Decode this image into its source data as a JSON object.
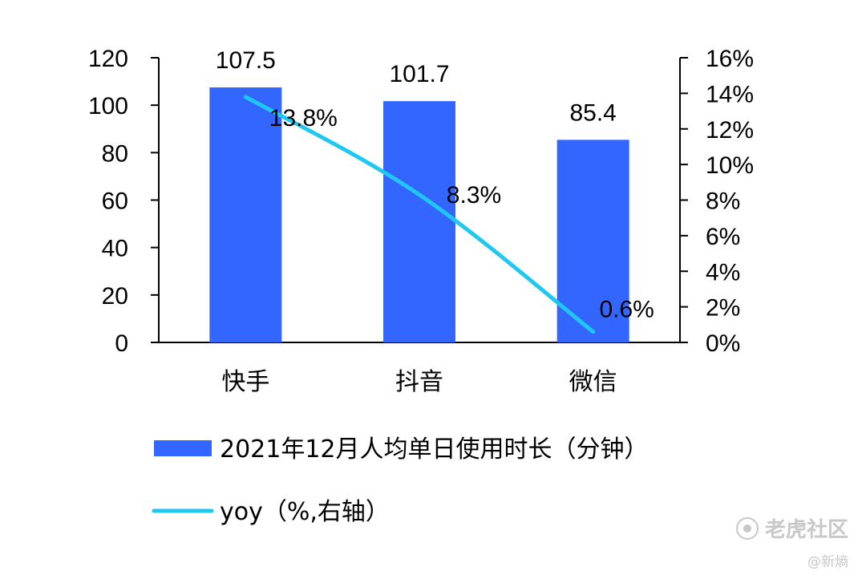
{
  "chart_data": {
    "type": "bar",
    "categories": [
      "快手",
      "抖音",
      "微信"
    ],
    "series": [
      {
        "name": "2021年12月人均单日使用时长（分钟）",
        "type": "bar",
        "axis": "left",
        "values": [
          107.5,
          101.7,
          85.4
        ],
        "labels": [
          "107.5",
          "101.7",
          "85.4"
        ],
        "color": "#3366FF"
      },
      {
        "name": "yoy（%,右轴）",
        "type": "line",
        "axis": "right",
        "values": [
          13.8,
          8.3,
          0.6
        ],
        "labels": [
          "13.8%",
          "8.3%",
          "0.6%"
        ],
        "color": "#1EC8F0"
      }
    ],
    "y_left": {
      "min": 0,
      "max": 120,
      "ticks": [
        0,
        20,
        40,
        60,
        80,
        100,
        120
      ]
    },
    "y_right": {
      "min": 0,
      "max": 16,
      "ticks": [
        "0%",
        "2%",
        "4%",
        "6%",
        "8%",
        "10%",
        "12%",
        "14%",
        "16%"
      ]
    },
    "grid": false,
    "legend_position": "bottom"
  },
  "watermark": {
    "main": "老虎社区",
    "sub": "@新熵",
    "logo_icon": "tiger-community-logo-icon"
  }
}
